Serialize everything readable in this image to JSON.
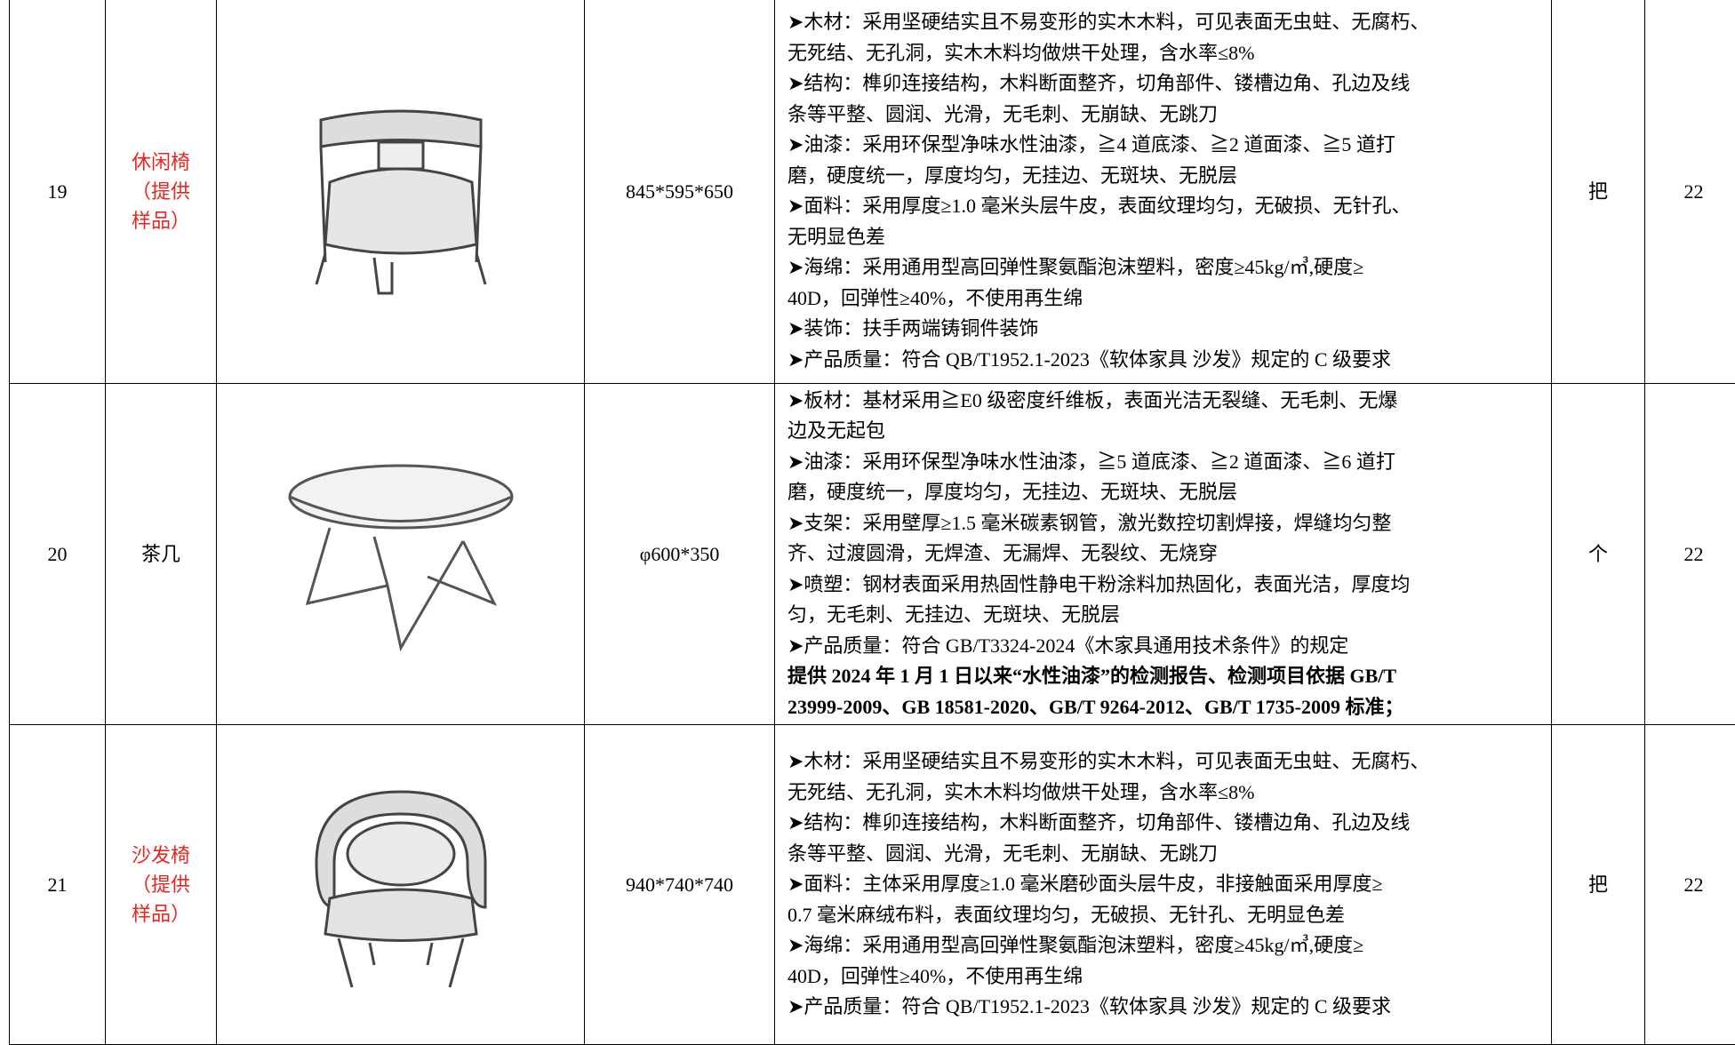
{
  "table": {
    "rows": [
      {
        "no": "19",
        "name": [
          "休闲椅",
          "（提供",
          "样品）"
        ],
        "name_color": "#e8261f",
        "size": "845*595*650",
        "spec": [
          "➤木材：采用坚硬结实且不易变形的实木木料，可见表面无虫蛀、无腐朽、",
          "无死结、无孔洞，实木木料均做烘干处理，含水率≤8%",
          "➤结构：榫卯连接结构，木料断面整齐，切角部件、镂槽边角、孔边及线",
          "条等平整、圆润、光滑，无毛刺、无崩缺、无跳刀",
          "➤油漆：采用环保型净味水性油漆，≧4 道底漆、≧2 道面漆、≧5 道打",
          "磨，硬度统一，厚度均匀，无挂边、无斑块、无脱层",
          "➤面料：采用厚度≥1.0 毫米头层牛皮，表面纹理均匀，无破损、无针孔、",
          "无明显色差",
          "➤海绵：采用通用型高回弹性聚氨酯泡沫塑料，密度≥45kg/㎥,硬度≥",
          "40D，回弹性≥40%，不使用再生绵",
          "➤装饰：扶手两端铸铜件装饰",
          "➤产品质量：符合 QB/T1952.1-2023《软体家具 沙发》规定的 C 级要求"
        ],
        "spec_bold": [],
        "unit": "把",
        "qty": "22"
      },
      {
        "no": "20",
        "name": [
          "茶几"
        ],
        "name_color": "#000000",
        "size": "φ600*350",
        "spec": [
          "➤板材：基材采用≧E0 级密度纤维板，表面光洁无裂缝、无毛刺、无爆",
          "边及无起包",
          "➤油漆：采用环保型净味水性油漆，≧5 道底漆、≧2 道面漆、≧6 道打",
          "磨，硬度统一，厚度均匀，无挂边、无斑块、无脱层",
          "➤支架：采用壁厚≥1.5 毫米碳素钢管，激光数控切割焊接，焊缝均匀整",
          "齐、过渡圆滑，无焊渣、无漏焊、无裂纹、无烧穿",
          "➤喷塑：钢材表面采用热固性静电干粉涂料加热固化，表面光洁，厚度均",
          "匀，无毛刺、无挂边、无斑块、无脱层",
          "➤产品质量：符合 GB/T3324-2024《木家具通用技术条件》的规定"
        ],
        "spec_bold": [
          "提供 2024 年 1 月 1 日以来“水性油漆”的检测报告、检测项目依据 GB/T",
          "23999-2009、GB 18581-2020、GB/T 9264-2012、GB/T 1735-2009 标准；"
        ],
        "unit": "个",
        "qty": "22"
      },
      {
        "no": "21",
        "name": [
          "沙发椅",
          "（提供",
          "样品）"
        ],
        "name_color": "#e8261f",
        "size": "940*740*740",
        "spec": [
          "➤木材：采用坚硬结实且不易变形的实木木料，可见表面无虫蛀、无腐朽、",
          "无死结、无孔洞，实木木料均做烘干处理，含水率≤8%",
          "➤结构：榫卯连接结构，木料断面整齐，切角部件、镂槽边角、孔边及线",
          "条等平整、圆润、光滑，无毛刺、无崩缺、无跳刀",
          "➤面料：主体采用厚度≥1.0 毫米磨砂面头层牛皮，非接触面采用厚度≥",
          "0.7 毫米麻绒布料，表面纹理均匀，无破损、无针孔、无明显色差",
          "➤海绵：采用通用型高回弹性聚氨酯泡沫塑料，密度≥45kg/㎥,硬度≥",
          "40D，回弹性≥40%，不使用再生绵",
          "➤产品质量：符合 QB/T1952.1-2023《软体家具 沙发》规定的 C 级要求"
        ],
        "spec_bold": [],
        "unit": "把",
        "qty": "22"
      }
    ]
  }
}
